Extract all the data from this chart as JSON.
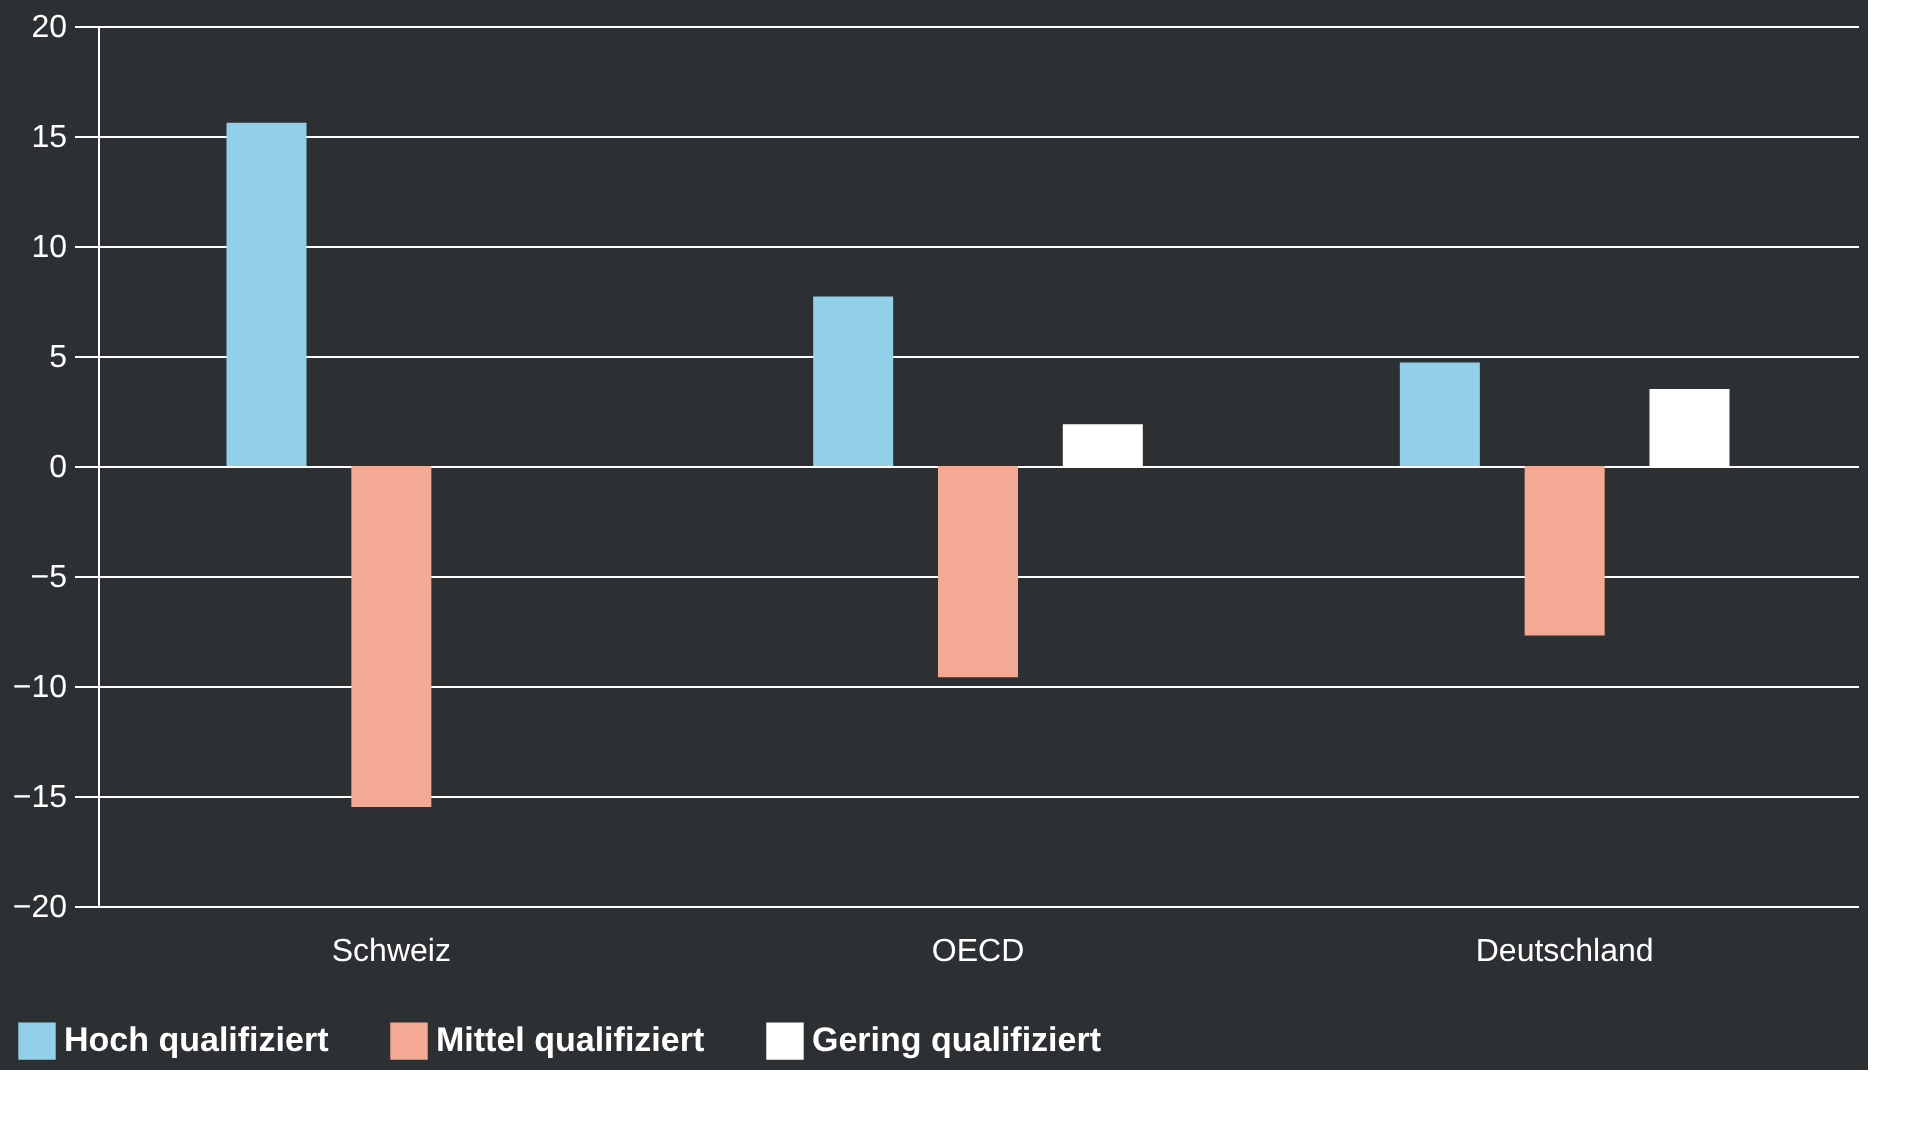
{
  "chart_data": {
    "type": "bar",
    "categories": [
      "Schweiz",
      "OECD",
      "Deutschland"
    ],
    "series": [
      {
        "name": "Hoch qualifiziert",
        "color": "#92d0ea",
        "values": [
          15.6,
          7.7,
          4.7
        ]
      },
      {
        "name": "Mittel qualifiziert",
        "color": "#f4a994",
        "values": [
          -15.5,
          -9.6,
          -7.7
        ]
      },
      {
        "name": "Gering qualifiziert",
        "color": "#ffffff",
        "values": [
          null,
          1.9,
          3.5
        ]
      }
    ],
    "ylim": [
      -20,
      20
    ],
    "yticks": [
      -20,
      -15,
      -10,
      -5,
      0,
      5,
      10,
      15,
      20
    ],
    "grid": "y",
    "legend": "bottom left"
  }
}
